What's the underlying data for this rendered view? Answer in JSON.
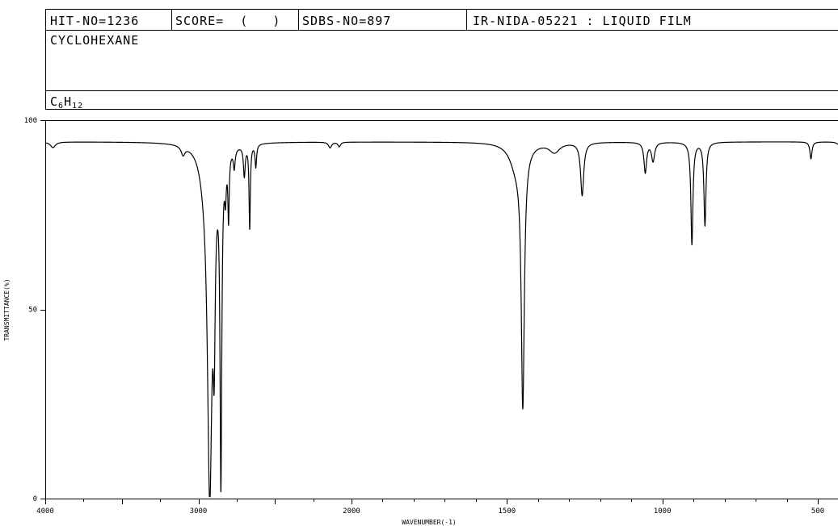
{
  "header": {
    "hit_no": "HIT-NO=1236",
    "score": "SCORE=  (   )",
    "sdbs_no": "SDBS-NO=897",
    "ir_code": "IR-NIDA-05221 : LIQUID FILM",
    "compound_name": "CYCLOHEXANE",
    "formula": {
      "c": "C",
      "c_sub": "6",
      "h": "H",
      "h_sub": "12"
    }
  },
  "chart_data": {
    "type": "line",
    "xlabel": "WAVENUMBER(-1)",
    "ylabel": "TRANSMITTANCE(%)",
    "xlim": [
      4000,
      400
    ],
    "ylim": [
      0,
      100
    ],
    "x_tick_labels": [
      "4000",
      "3000",
      "2000",
      "1500",
      "1000",
      "500"
    ],
    "y_tick_labels": [
      "0",
      "50",
      "100"
    ],
    "series": [
      {
        "color": "#000000",
        "baseline": 94.3,
        "peaks": [
          {
            "x": 3950,
            "depth": 1.5,
            "w": 20
          },
          {
            "x": 3100,
            "depth": 2.3,
            "w": 15
          },
          {
            "x": 2960,
            "depth": 5,
            "w": 40
          },
          {
            "x": 2926,
            "depth": 89,
            "w": 18
          },
          {
            "x": 2897,
            "depth": 38,
            "w": 8
          },
          {
            "x": 2853,
            "depth": 85,
            "w": 7
          },
          {
            "x": 2823,
            "depth": 9,
            "w": 6
          },
          {
            "x": 2803,
            "depth": 17,
            "w": 5
          },
          {
            "x": 2766,
            "depth": 5,
            "w": 7
          },
          {
            "x": 2700,
            "depth": 8,
            "w": 7
          },
          {
            "x": 2665,
            "depth": 22,
            "w": 5
          },
          {
            "x": 2625,
            "depth": 6,
            "w": 6
          },
          {
            "x": 2140,
            "depth": 1.5,
            "w": 12
          },
          {
            "x": 2080,
            "depth": 1.2,
            "w": 10
          },
          {
            "x": 1470,
            "depth": 6,
            "w": 25
          },
          {
            "x": 1449,
            "depth": 67,
            "w": 6
          },
          {
            "x": 1347,
            "depth": 2.5,
            "w": 20
          },
          {
            "x": 1258,
            "depth": 14,
            "w": 6
          },
          {
            "x": 1055,
            "depth": 8,
            "w": 5
          },
          {
            "x": 1030,
            "depth": 5,
            "w": 6
          },
          {
            "x": 905,
            "depth": 27,
            "w": 4
          },
          {
            "x": 863,
            "depth": 22,
            "w": 4
          },
          {
            "x": 522,
            "depth": 4.5,
            "w": 4
          },
          {
            "x": 430,
            "depth": 1,
            "w": 8
          }
        ]
      }
    ]
  }
}
